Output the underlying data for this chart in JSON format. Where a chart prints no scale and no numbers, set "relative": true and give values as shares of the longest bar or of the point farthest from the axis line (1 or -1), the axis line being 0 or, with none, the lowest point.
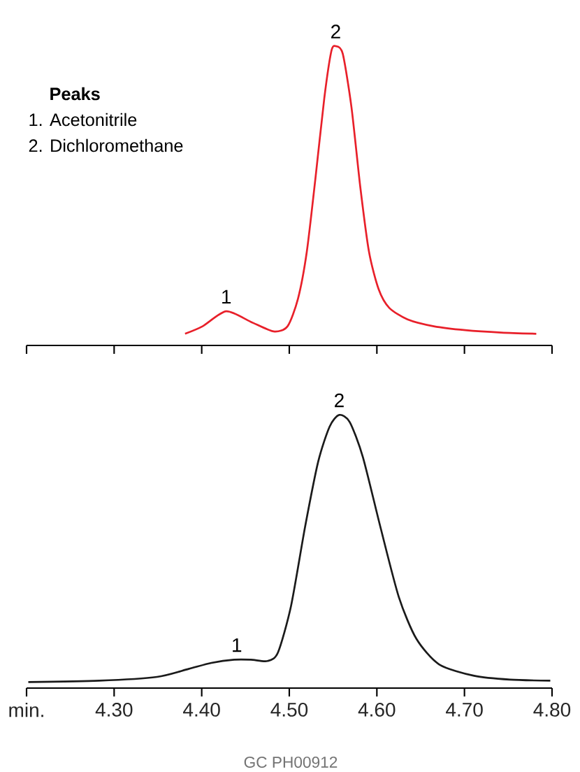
{
  "chart_data": [
    {
      "type": "line",
      "relative": true,
      "xlim": [
        4.2,
        4.8
      ],
      "xticks": [
        {
          "value": 4.2,
          "label": null
        },
        {
          "value": 4.3,
          "label": null
        },
        {
          "value": 4.4,
          "label": null
        },
        {
          "value": 4.5,
          "label": null
        },
        {
          "value": 4.6,
          "label": null
        },
        {
          "value": 4.7,
          "label": null
        },
        {
          "value": 4.8,
          "label": null
        }
      ],
      "tick_labels": false,
      "series": [
        {
          "color": "#e8202a",
          "x": [
            4.381,
            4.401,
            4.428,
            4.456,
            4.482,
            4.498,
            4.51,
            4.52,
            4.53,
            4.54,
            4.548,
            4.553,
            4.561,
            4.571,
            4.581,
            4.591,
            4.602,
            4.614,
            4.635,
            4.665,
            4.701,
            4.742,
            4.782
          ],
          "values": [
            0.039,
            0.064,
            0.114,
            0.079,
            0.047,
            0.064,
            0.157,
            0.313,
            0.562,
            0.827,
            0.983,
            1.0,
            0.975,
            0.796,
            0.531,
            0.313,
            0.188,
            0.126,
            0.087,
            0.064,
            0.051,
            0.043,
            0.039
          ]
        }
      ],
      "annotations": [
        "Peaks",
        "1. Acetonitrile",
        "2. Dichloromethane",
        {
          "text": "1",
          "x": 4.428,
          "y": 0.114
        },
        {
          "text": "2",
          "x": 4.553,
          "y": 1.0
        }
      ]
    },
    {
      "type": "line",
      "relative": true,
      "xlim": [
        4.2,
        4.8
      ],
      "xticks": [
        {
          "value": 4.2,
          "label": "min."
        },
        {
          "value": 4.3,
          "label": "4.30"
        },
        {
          "value": 4.4,
          "label": "4.40"
        },
        {
          "value": 4.5,
          "label": "4.50"
        },
        {
          "value": 4.6,
          "label": "4.60"
        },
        {
          "value": 4.7,
          "label": "4.70"
        },
        {
          "value": 4.8,
          "label": "4.80"
        }
      ],
      "tick_labels": "x",
      "series": [
        {
          "color": "#1a1a1a",
          "x": [
            4.202,
            4.283,
            4.349,
            4.385,
            4.411,
            4.437,
            4.456,
            4.475,
            4.487,
            4.502,
            4.518,
            4.533,
            4.546,
            4.557,
            4.569,
            4.584,
            4.604,
            4.625,
            4.645,
            4.671,
            4.711,
            4.752,
            4.798
          ],
          "values": [
            0.022,
            0.027,
            0.041,
            0.07,
            0.092,
            0.104,
            0.104,
            0.099,
            0.13,
            0.301,
            0.59,
            0.829,
            0.957,
            1.0,
            0.974,
            0.846,
            0.59,
            0.334,
            0.181,
            0.087,
            0.045,
            0.031,
            0.027
          ]
        }
      ],
      "annotations": [
        {
          "text": "1",
          "x": 4.44,
          "y": 0.104
        },
        {
          "text": "2",
          "x": 4.557,
          "y": 1.0
        },
        "GC PH00912"
      ]
    }
  ]
}
